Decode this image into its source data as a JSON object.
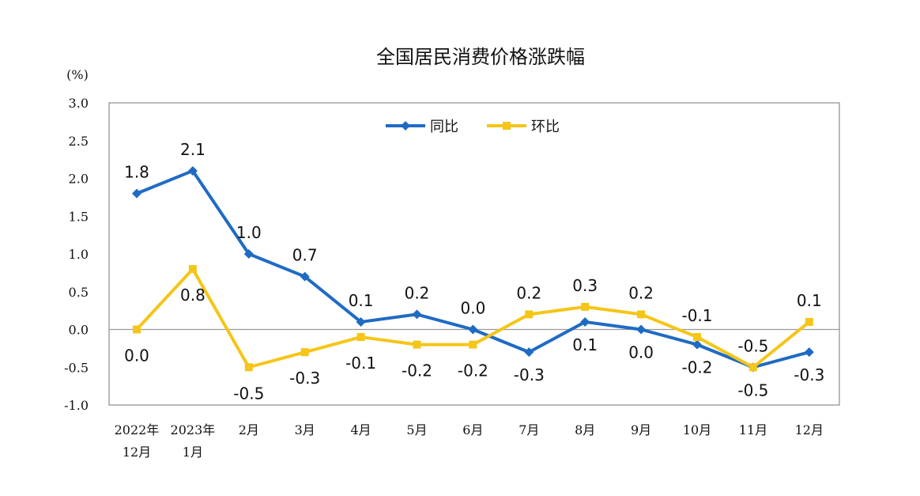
{
  "chart_data": {
    "type": "line",
    "title": "全国居民消费价格涨跌幅",
    "ylabel": "(%)",
    "xlabel": "",
    "ylim": [
      -1.0,
      3.0
    ],
    "yticks": [
      "3.0",
      "2.5",
      "2.0",
      "1.5",
      "1.0",
      "0.5",
      "0.0",
      "-0.5",
      "-1.0"
    ],
    "categories": [
      [
        "2022年",
        "12月"
      ],
      [
        "2023年",
        "1月"
      ],
      [
        "2月"
      ],
      [
        "3月"
      ],
      [
        "4月"
      ],
      [
        "5月"
      ],
      [
        "6月"
      ],
      [
        "7月"
      ],
      [
        "8月"
      ],
      [
        "9月"
      ],
      [
        "10月"
      ],
      [
        "11月"
      ],
      [
        "12月"
      ]
    ],
    "legend_position": "top-center",
    "series": [
      {
        "name": "同比",
        "color": "#1f6bc4",
        "marker": "diamond",
        "values": [
          1.8,
          2.1,
          1.0,
          0.7,
          0.1,
          0.2,
          0.0,
          -0.3,
          0.1,
          0.0,
          -0.2,
          -0.5,
          -0.3
        ],
        "labels": [
          "1.8",
          "2.1",
          "1.0",
          "0.7",
          "0.1",
          "0.2",
          "0.0",
          "-0.3",
          "0.1",
          "0.0",
          "-0.2",
          "-0.5",
          "-0.3"
        ]
      },
      {
        "name": "环比",
        "color": "#f5c518",
        "marker": "square",
        "values": [
          0.0,
          0.8,
          -0.5,
          -0.3,
          -0.1,
          -0.2,
          -0.2,
          0.2,
          0.3,
          0.2,
          -0.1,
          -0.5,
          0.1
        ],
        "labels": [
          "0.0",
          "0.8",
          "-0.5",
          "-0.3",
          "-0.1",
          "-0.2",
          "-0.2",
          "0.2",
          "0.3",
          "0.2",
          "-0.1",
          "-0.5",
          "0.1"
        ]
      }
    ]
  }
}
